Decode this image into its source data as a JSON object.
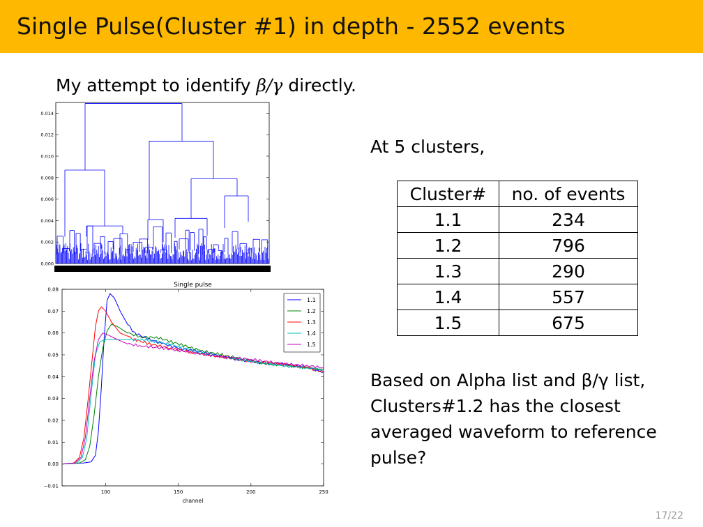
{
  "slide": {
    "title": "Single Pulse(Cluster #1) in depth - 2552 events",
    "intro_prefix": "My attempt to identify ",
    "intro_symbol": "β/γ",
    "intro_suffix": " directly.",
    "lead": "At 5 clusters,",
    "table": {
      "headers": [
        "Cluster#",
        "no. of events"
      ],
      "rows": [
        [
          "1.1",
          "234"
        ],
        [
          "1.2",
          "796"
        ],
        [
          "1.3",
          "290"
        ],
        [
          "1.4",
          "557"
        ],
        [
          "1.5",
          "675"
        ]
      ]
    },
    "conclusion_lines": [
      "Based on Alpha list and β/γ list,",
      "Clusters#1.2 has the closest",
      "averaged waveform to reference",
      "pulse?"
    ],
    "page_number": "17/22"
  },
  "chart_data": [
    {
      "type": "dendrogram",
      "ylim": [
        0.0,
        0.015
      ],
      "yticks": [
        "0.000",
        "0.002",
        "0.004",
        "0.006",
        "0.008",
        "0.010",
        "0.012",
        "0.014"
      ],
      "yvalues": [
        0.0,
        0.002,
        0.004,
        0.006,
        0.008,
        0.01,
        0.012,
        0.014
      ],
      "color": "#0000ff",
      "top_merge_height": 0.0149
    },
    {
      "type": "line",
      "title": "Single pulse",
      "xlabel": "channel",
      "ylabel": "",
      "xlim": [
        70,
        250
      ],
      "ylim": [
        -0.01,
        0.08
      ],
      "xticks": [
        "100",
        "150",
        "200",
        "250"
      ],
      "xtick_values": [
        100,
        150,
        200,
        250
      ],
      "yticks": [
        "−0.01",
        "0.00",
        "0.01",
        "0.02",
        "0.03",
        "0.04",
        "0.05",
        "0.06",
        "0.07",
        "0.08"
      ],
      "ytick_values": [
        -0.01,
        0.0,
        0.01,
        0.02,
        0.03,
        0.04,
        0.05,
        0.06,
        0.07,
        0.08
      ],
      "legend_position": "top-right",
      "series": [
        {
          "name": "1.1",
          "color": "#0000ff",
          "x": [
            70,
            85,
            90,
            93,
            95,
            97,
            99,
            101,
            103,
            106,
            110,
            115,
            120,
            130,
            140,
            150,
            160,
            175,
            190,
            200,
            210,
            220,
            230,
            240,
            250
          ],
          "y": [
            0.0,
            0.0005,
            0.001,
            0.004,
            0.015,
            0.035,
            0.058,
            0.075,
            0.078,
            0.076,
            0.07,
            0.064,
            0.06,
            0.057,
            0.055,
            0.053,
            0.052,
            0.05,
            0.048,
            0.047,
            0.046,
            0.046,
            0.045,
            0.044,
            0.042
          ]
        },
        {
          "name": "1.2",
          "color": "#008000",
          "x": [
            70,
            82,
            86,
            89,
            92,
            95,
            98,
            101,
            104,
            108,
            115,
            125,
            135,
            145,
            155,
            165,
            180,
            195,
            210,
            225,
            240,
            250
          ],
          "y": [
            0.0,
            0.0005,
            0.002,
            0.008,
            0.022,
            0.04,
            0.053,
            0.061,
            0.064,
            0.063,
            0.06,
            0.058,
            0.058,
            0.056,
            0.054,
            0.052,
            0.05,
            0.048,
            0.046,
            0.045,
            0.044,
            0.043
          ]
        },
        {
          "name": "1.3",
          "color": "#ff0000",
          "x": [
            70,
            78,
            82,
            85,
            88,
            91,
            93,
            95,
            97,
            100,
            104,
            110,
            120,
            130,
            145,
            160,
            180,
            200,
            220,
            240,
            250
          ],
          "y": [
            0.0,
            0.0005,
            0.003,
            0.012,
            0.03,
            0.05,
            0.063,
            0.07,
            0.072,
            0.07,
            0.065,
            0.06,
            0.057,
            0.055,
            0.053,
            0.051,
            0.049,
            0.047,
            0.046,
            0.044,
            0.042
          ]
        },
        {
          "name": "1.4",
          "color": "#00bfbf",
          "x": [
            70,
            80,
            84,
            87,
            90,
            93,
            96,
            100,
            105,
            115,
            125,
            135,
            150,
            165,
            180,
            200,
            220,
            240,
            250
          ],
          "y": [
            0.0,
            0.0005,
            0.003,
            0.012,
            0.032,
            0.05,
            0.056,
            0.057,
            0.057,
            0.057,
            0.057,
            0.056,
            0.054,
            0.051,
            0.049,
            0.047,
            0.045,
            0.044,
            0.043
          ]
        },
        {
          "name": "1.5",
          "color": "#bf00bf",
          "x": [
            70,
            79,
            83,
            86,
            89,
            92,
            95,
            98,
            102,
            108,
            115,
            125,
            140,
            160,
            180,
            200,
            220,
            240,
            250
          ],
          "y": [
            0.0,
            0.0005,
            0.003,
            0.012,
            0.03,
            0.047,
            0.057,
            0.06,
            0.059,
            0.057,
            0.055,
            0.054,
            0.053,
            0.051,
            0.049,
            0.048,
            0.046,
            0.045,
            0.044
          ]
        }
      ]
    }
  ]
}
